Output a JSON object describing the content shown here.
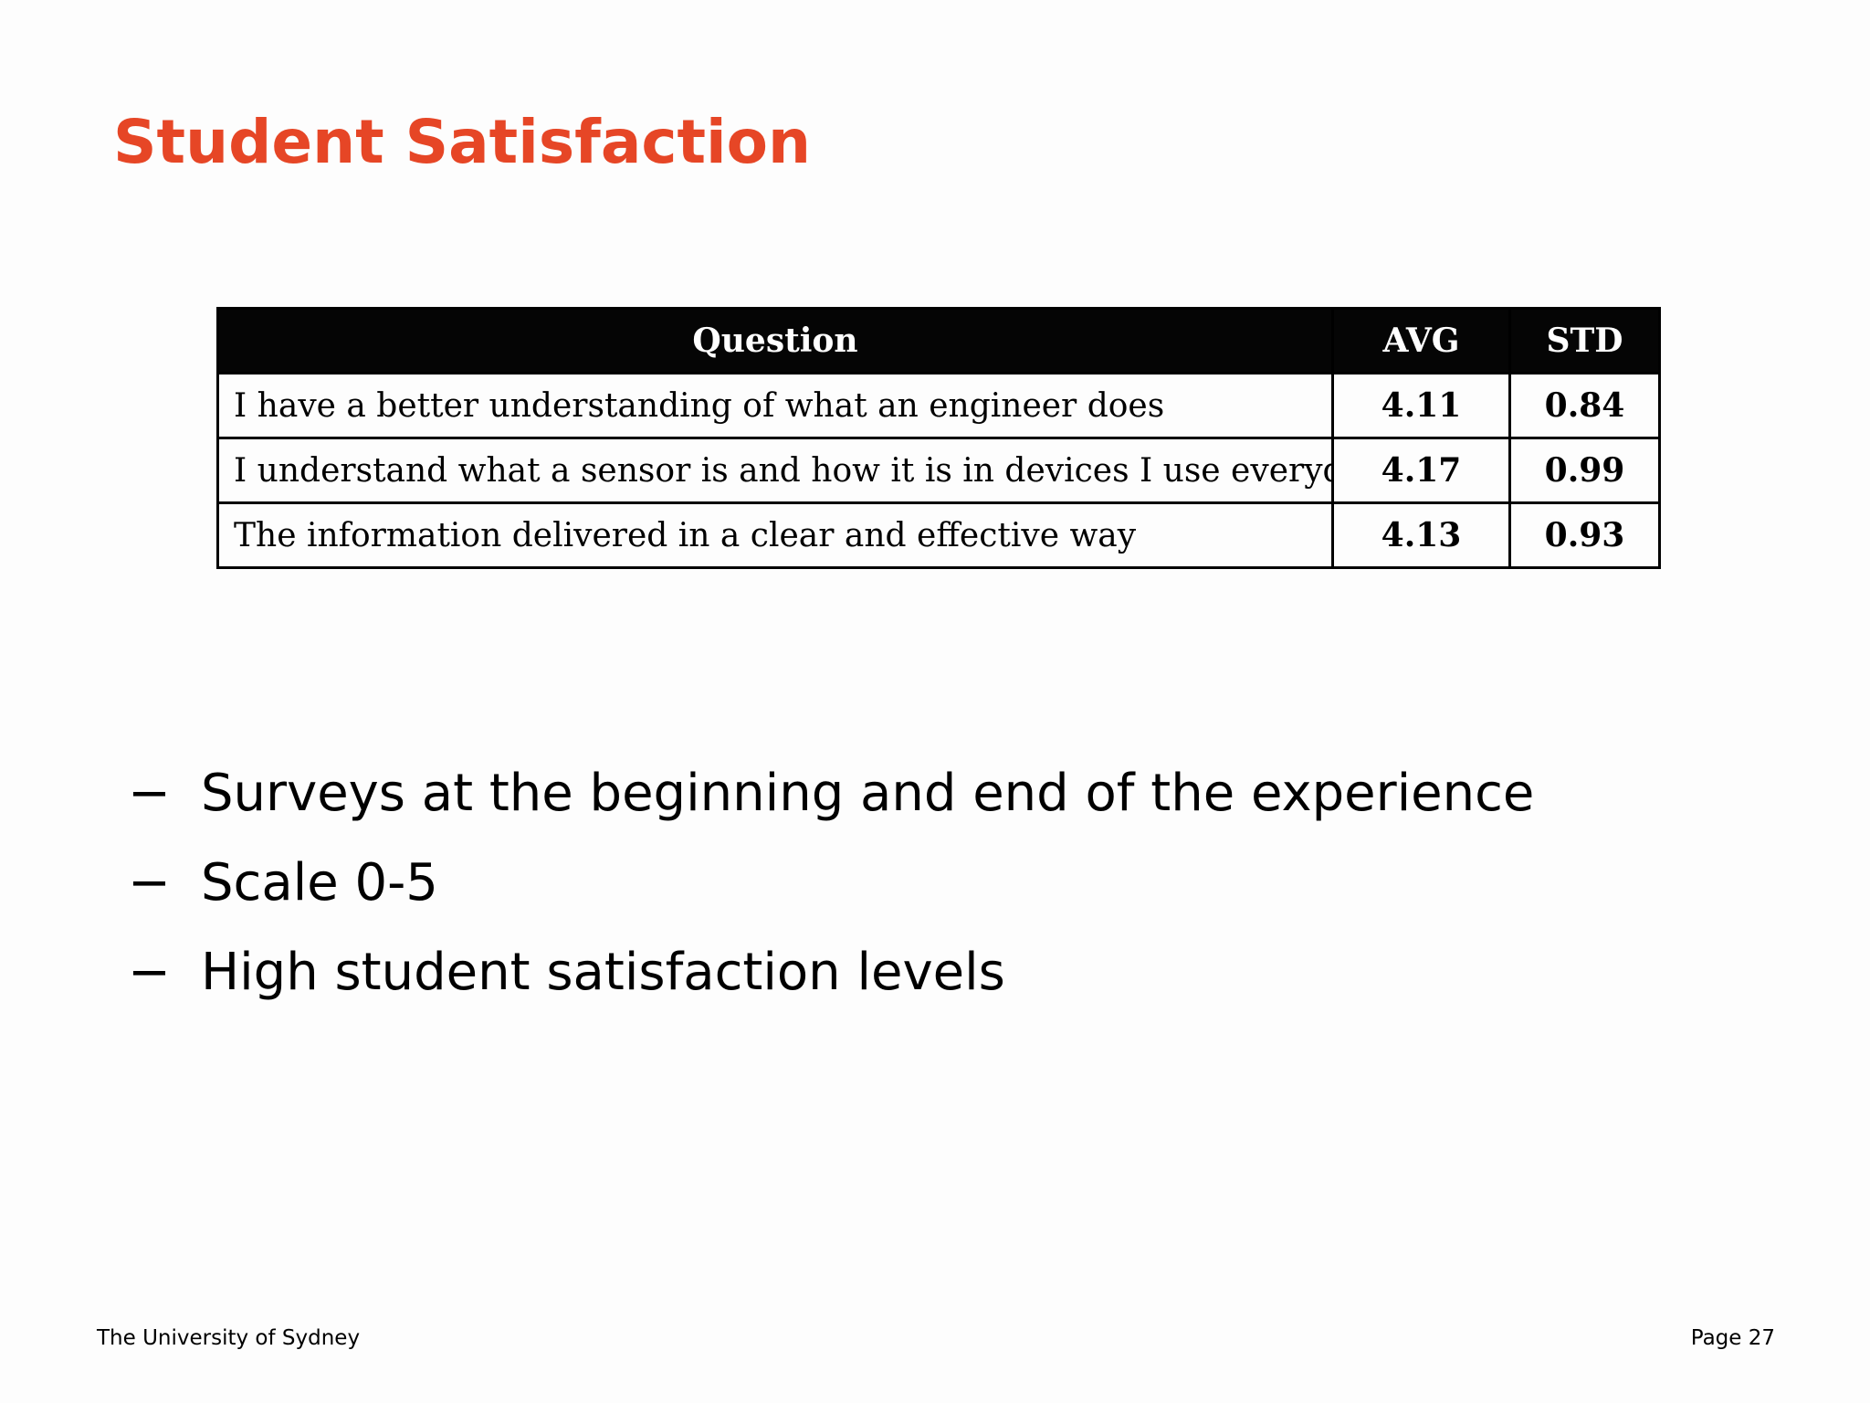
{
  "slide": {
    "title": "Student Satisfaction",
    "title_color": "#e64626"
  },
  "table": {
    "headers": [
      "Question",
      "AVG",
      "STD"
    ],
    "rows": [
      {
        "question": "I have a better understanding of what an engineer does",
        "avg": "4.11",
        "std": "0.84"
      },
      {
        "question": "I understand what a sensor is and how it is in devices I use everyday",
        "avg": "4.17",
        "std": "0.99"
      },
      {
        "question": "The information delivered in a clear and effective way",
        "avg": "4.13",
        "std": "0.93"
      }
    ]
  },
  "bullets": {
    "marker": "−",
    "items": [
      "Surveys at the beginning and end of the experience",
      "Scale 0-5",
      "High student satisfaction levels"
    ]
  },
  "footer": {
    "institution": "The University of Sydney",
    "page": "Page 27"
  }
}
